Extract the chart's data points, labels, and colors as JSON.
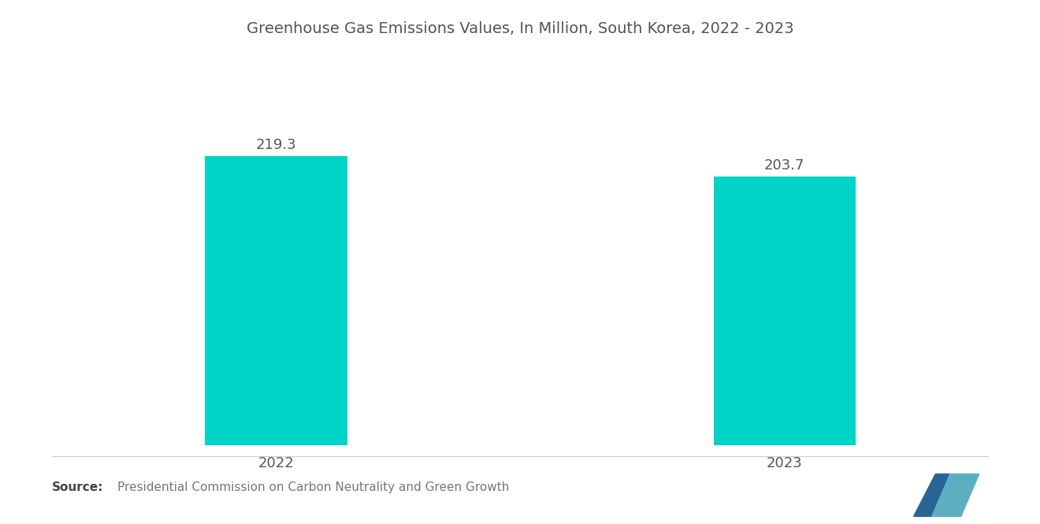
{
  "title": "Greenhouse Gas Emissions Values, In Million, South Korea, 2022 - 2023",
  "categories": [
    "2022",
    "2023"
  ],
  "values": [
    219.3,
    203.7
  ],
  "bar_color": "#00D4C8",
  "bar_width": 0.28,
  "value_label_fontsize": 13,
  "title_fontsize": 14,
  "xlabel_fontsize": 13,
  "background_color": "#ffffff",
  "source_bold": "Source:",
  "source_text": "Presidential Commission on Carbon Neutrality and Green Growth",
  "source_fontsize": 11,
  "ylim": [
    0,
    270
  ],
  "figsize": [
    13.2,
    6.65
  ],
  "dpi": 100,
  "text_color": "#555555",
  "bar_positions": [
    1,
    2
  ]
}
